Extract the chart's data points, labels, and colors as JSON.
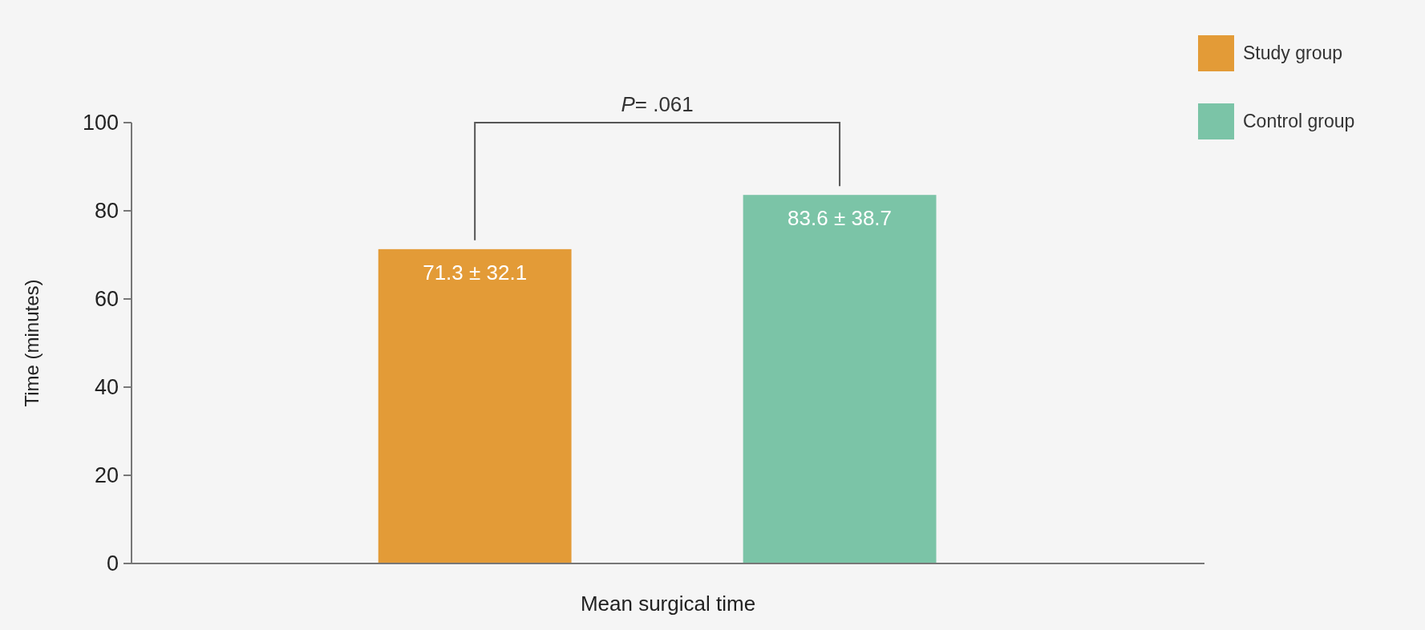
{
  "chart_data": {
    "type": "bar",
    "categories": [
      "Mean surgical time"
    ],
    "ylabel": "Time (minutes)",
    "ylim": [
      0,
      100
    ],
    "yticks": [
      0,
      20,
      40,
      60,
      80,
      100
    ],
    "grid": false,
    "legend": "top right",
    "series": [
      {
        "name": "Study group",
        "color": "#e39b37",
        "values": [
          71.3
        ],
        "value_labels": [
          "71.3 ± 32.1"
        ]
      },
      {
        "name": "Control group",
        "color": "#7bc4a7",
        "values": [
          83.6
        ],
        "value_labels": [
          "83.6 ± 38.7"
        ]
      }
    ],
    "annotations": [
      "P= .061"
    ]
  }
}
